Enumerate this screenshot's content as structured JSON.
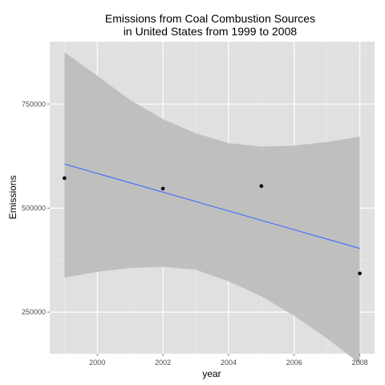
{
  "chart_data": {
    "type": "scatter",
    "title_lines": [
      "Emissions from Coal Combustion Sources",
      "in United States from 1999 to 2008"
    ],
    "xlabel": "year",
    "ylabel": "Emissions",
    "x_ticks": [
      2000,
      2002,
      2004,
      2006,
      2008
    ],
    "x_tick_labels": [
      "2000",
      "2002",
      "2004",
      "2006",
      "2008"
    ],
    "y_ticks": [
      250000,
      500000,
      750000
    ],
    "y_tick_labels": [
      "250000",
      "500000",
      "750000"
    ],
    "xlim": [
      1998.55,
      2008.45
    ],
    "ylim": [
      150000,
      900000
    ],
    "grid": true,
    "points": [
      {
        "x": 1999,
        "y": 572000
      },
      {
        "x": 2002,
        "y": 547000
      },
      {
        "x": 2005,
        "y": 553000
      },
      {
        "x": 2008,
        "y": 343000
      }
    ],
    "trend_line": {
      "x": [
        1999,
        2008
      ],
      "y": [
        606000,
        403000
      ]
    },
    "confidence_band": {
      "x": [
        1999,
        2000,
        2001,
        2002,
        2003,
        2004,
        2005,
        2006,
        2007,
        2008
      ],
      "upper": [
        875000,
        818000,
        760000,
        714000,
        680000,
        656000,
        648000,
        650000,
        659000,
        672000
      ],
      "lower": [
        333000,
        347000,
        356000,
        359000,
        352000,
        324000,
        288000,
        241000,
        187000,
        126000
      ]
    },
    "colors": {
      "panel": "#e0e0e0",
      "grid_major": "#ffffff",
      "grid_minor": "#ececec",
      "band": "#bdbdbd",
      "line": "#3366ff",
      "point": "#000000"
    }
  }
}
